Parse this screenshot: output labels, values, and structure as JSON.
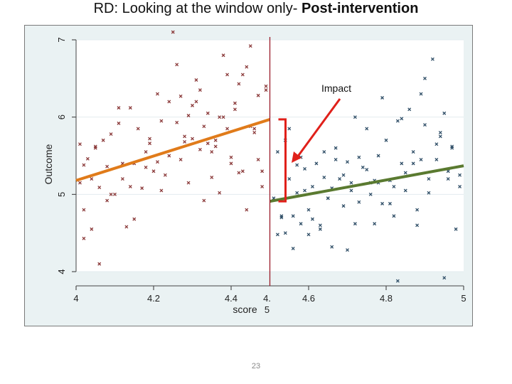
{
  "slide": {
    "title_plain": "RD: Looking at the window only- ",
    "title_bold": "Post-intervention",
    "page_number": "23"
  },
  "colors": {
    "background": "#eaf2f3",
    "plot_area": "#ffffff",
    "pre_markers": "#8b3a3a",
    "post_markers": "#2e4d66",
    "pre_fit": "#e07b1a",
    "post_fit": "#5a7a30",
    "cutoff_line": "#9a1b2a",
    "annotation": "#e0201a"
  },
  "chart_data": {
    "type": "scatter",
    "xlabel": "score",
    "ylabel": "Outcome",
    "xlim": [
      4,
      5
    ],
    "ylim": [
      4,
      7
    ],
    "x_ticks": [
      "4",
      "4.2",
      "4.4",
      "4.6",
      "4.8",
      "5"
    ],
    "y_ticks": [
      "4",
      "5",
      "6",
      "7"
    ],
    "cutoff_label_lines": [
      "4.",
      "5"
    ],
    "cutoff": 4.5,
    "annotation": "Impact",
    "grid": true,
    "pre_fit_line": {
      "x": [
        4.0,
        4.5
      ],
      "y": [
        5.18,
        5.97
      ]
    },
    "post_fit_line": {
      "x": [
        4.5,
        5.0
      ],
      "y": [
        4.91,
        5.37
      ]
    },
    "series": [
      {
        "values_x": [
          4.01,
          4.03,
          4.02,
          4.05,
          4.06,
          4.08,
          4.04,
          4.07,
          4.09,
          4.02,
          4.12,
          4.15,
          4.11,
          4.16,
          4.18,
          4.2,
          4.14,
          4.13,
          4.1,
          4.19,
          4.21,
          4.23,
          4.25,
          4.22,
          4.24,
          4.27,
          4.26,
          4.28,
          4.29,
          4.3,
          4.31,
          4.32,
          4.33,
          4.35,
          4.34,
          4.36,
          4.37,
          4.38,
          4.39,
          4.4,
          4.41,
          4.42,
          4.43,
          4.44,
          4.45,
          4.46,
          4.47,
          4.48,
          4.49,
          4.3,
          4.35,
          4.33,
          4.4,
          4.38,
          4.42,
          4.44,
          4.12,
          4.08,
          4.06,
          4.18,
          4.22,
          4.26,
          4.31,
          4.36,
          4.41,
          4.46,
          4.48,
          4.45,
          4.43,
          4.39,
          4.34,
          4.29,
          4.24,
          4.19,
          4.14,
          4.09,
          4.04,
          4.02,
          4.01,
          4.05,
          4.17,
          4.21,
          4.27,
          4.32,
          4.37,
          4.47,
          4.49,
          4.28,
          4.15,
          4.11
        ],
        "values_y": [
          5.15,
          5.46,
          4.8,
          5.62,
          5.09,
          5.36,
          5.2,
          5.7,
          5.78,
          4.43,
          5.4,
          4.68,
          5.92,
          5.85,
          5.55,
          5.3,
          6.12,
          4.58,
          5.0,
          5.66,
          5.42,
          5.25,
          7.1,
          5.05,
          5.5,
          6.27,
          5.93,
          5.68,
          5.15,
          5.72,
          6.48,
          6.35,
          5.88,
          5.22,
          6.05,
          5.62,
          5.02,
          6.8,
          6.55,
          5.4,
          6.1,
          6.43,
          5.3,
          6.65,
          6.92,
          5.8,
          6.28,
          5.1,
          6.35,
          6.15,
          5.55,
          4.92,
          5.48,
          6.0,
          5.28,
          4.8,
          5.2,
          4.92,
          4.1,
          5.35,
          5.95,
          6.68,
          6.2,
          5.7,
          6.18,
          5.85,
          5.3,
          5.88,
          6.55,
          5.85,
          5.66,
          6.02,
          6.2,
          5.72,
          5.1,
          5.0,
          4.55,
          5.38,
          5.65,
          5.6,
          5.08,
          6.3,
          5.45,
          5.58,
          6.0,
          5.45,
          6.4,
          5.75,
          5.4,
          6.12
        ]
      },
      {
        "values_x": [
          4.51,
          4.52,
          4.53,
          4.54,
          4.55,
          4.56,
          4.57,
          4.58,
          4.59,
          4.6,
          4.61,
          4.62,
          4.63,
          4.64,
          4.65,
          4.66,
          4.67,
          4.68,
          4.69,
          4.7,
          4.71,
          4.72,
          4.73,
          4.74,
          4.75,
          4.76,
          4.77,
          4.78,
          4.79,
          4.8,
          4.81,
          4.82,
          4.83,
          4.84,
          4.85,
          4.86,
          4.87,
          4.88,
          4.89,
          4.9,
          4.91,
          4.92,
          4.93,
          4.94,
          4.95,
          4.96,
          4.97,
          4.98,
          4.99,
          4.52,
          4.55,
          4.58,
          4.61,
          4.64,
          4.67,
          4.7,
          4.73,
          4.76,
          4.79,
          4.82,
          4.85,
          4.88,
          4.91,
          4.94,
          4.97,
          4.54,
          4.57,
          4.6,
          4.63,
          4.66,
          4.69,
          4.72,
          4.75,
          4.78,
          4.81,
          4.84,
          4.87,
          4.9,
          4.93,
          4.96,
          4.99,
          4.53,
          4.59,
          4.65,
          4.71,
          4.77,
          4.83,
          4.89,
          4.95,
          4.56
        ],
        "values_y": [
          4.95,
          5.55,
          4.7,
          4.5,
          5.2,
          4.3,
          5.02,
          4.62,
          5.33,
          4.8,
          5.1,
          5.4,
          4.6,
          5.55,
          4.95,
          4.32,
          5.6,
          5.2,
          4.85,
          5.42,
          5.05,
          6.0,
          4.9,
          5.35,
          5.85,
          5.15,
          4.62,
          5.5,
          6.25,
          5.7,
          5.18,
          4.72,
          5.95,
          5.4,
          5.05,
          6.1,
          5.55,
          4.8,
          6.3,
          5.9,
          5.2,
          6.75,
          5.45,
          5.75,
          6.05,
          5.3,
          5.6,
          4.55,
          5.25,
          4.48,
          5.85,
          5.48,
          4.68,
          5.22,
          5.45,
          4.28,
          5.48,
          5.0,
          4.88,
          5.1,
          5.28,
          4.6,
          5.02,
          5.8,
          5.62,
          5.7,
          5.38,
          4.48,
          4.55,
          5.08,
          5.25,
          4.62,
          5.32,
          5.15,
          4.88,
          5.98,
          5.4,
          6.5,
          5.65,
          5.2,
          5.1,
          4.72,
          5.05,
          4.95,
          5.15,
          5.18,
          3.88,
          5.45,
          3.92,
          4.72
        ]
      }
    ]
  }
}
